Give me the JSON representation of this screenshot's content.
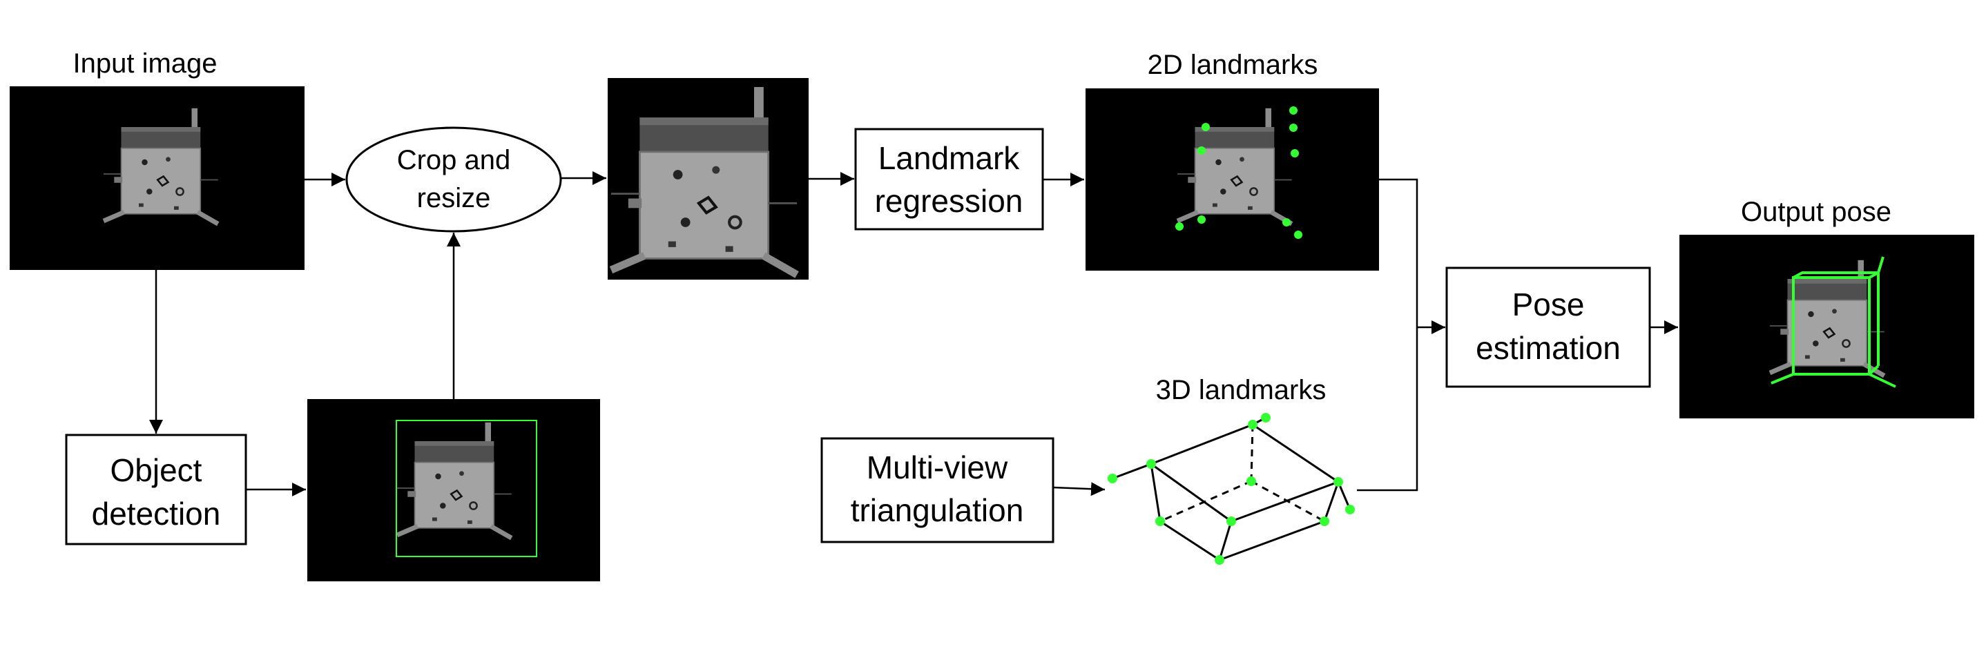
{
  "labels": {
    "input_image": "Input image",
    "landmarks_2d": "2D landmarks",
    "output_pose": "Output pose",
    "landmarks_3d": "3D landmarks"
  },
  "boxes": {
    "crop_line1": "Crop and",
    "crop_line2": "resize",
    "landmark_line1": "Landmark",
    "landmark_line2": "regression",
    "object_line1": "Object",
    "object_line2": "detection",
    "pose_line1": "Pose",
    "pose_line2": "estimation",
    "multiview_line1": "Multi-view",
    "multiview_line2": "triangulation"
  },
  "colors": {
    "image_background": "#000000",
    "satellite_body": "#9a9a9a",
    "satellite_top_panel": "#4a4a4a",
    "landmark_green": "#33ff33",
    "stroke": "#000000"
  }
}
